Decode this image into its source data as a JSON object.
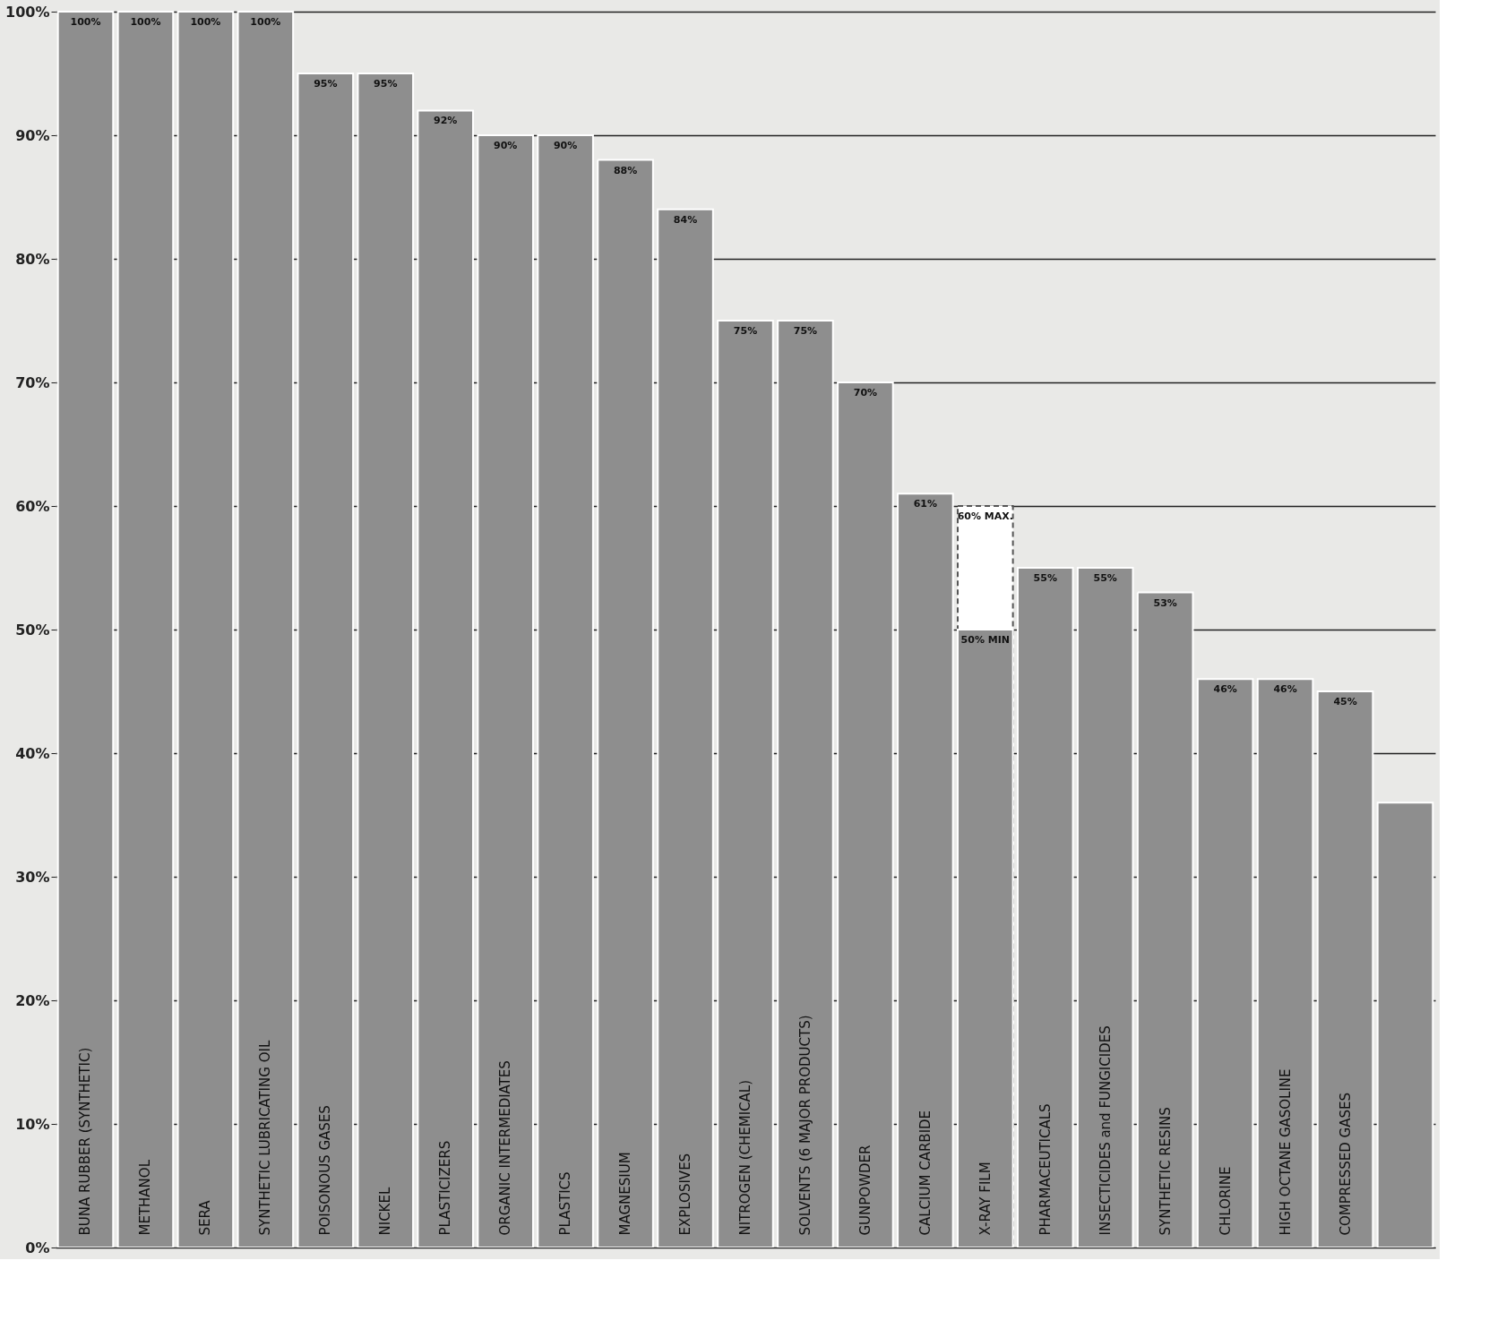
{
  "chart_data": {
    "type": "bar",
    "categories": [
      "BUNA RUBBER (SYNTHETIC)",
      "METHANOL",
      "SERA",
      "SYNTHETIC LUBRICATING OIL",
      "POISONOUS GASES",
      "NICKEL",
      "PLASTICIZERS",
      "ORGANIC INTERMEDIATES",
      "PLASTICS",
      "MAGNESIUM",
      "EXPLOSIVES",
      "NITROGEN (CHEMICAL)",
      "SOLVENTS (6 MAJOR PRODUCTS)",
      "GUNPOWDER",
      "CALCIUM CARBIDE",
      "X-RAY FILM",
      "PHARMACEUTICALS",
      "INSECTICIDES and FUNGICIDES",
      "SYNTHETIC RESINS",
      "CHLORINE",
      "HIGH OCTANE GASOLINE",
      "COMPRESSED GASES",
      null
    ],
    "series": [
      {
        "color": "#8e8e8e",
        "values": [
          100,
          100,
          100,
          100,
          95,
          95,
          92,
          90,
          90,
          88,
          84,
          75,
          75,
          70,
          61,
          50,
          55,
          55,
          53,
          46,
          46,
          45,
          36
        ],
        "value_labels": [
          "100%",
          "100%",
          "100%",
          "100%",
          "95%",
          "95%",
          "92%",
          "90%",
          "90%",
          "88%",
          "84%",
          "75%",
          "75%",
          "70%",
          "61%",
          "50% MIN",
          "55%",
          "55%",
          "53%",
          "46%",
          "46%",
          "45%",
          null
        ]
      },
      {
        "color": "#ffffff",
        "line_style": "dashed",
        "values": [
          null,
          null,
          null,
          null,
          null,
          null,
          null,
          null,
          null,
          null,
          null,
          null,
          null,
          null,
          null,
          60,
          null,
          null,
          null,
          null,
          null,
          null,
          null
        ],
        "value_labels": [
          null,
          null,
          null,
          null,
          null,
          null,
          null,
          null,
          null,
          null,
          null,
          null,
          null,
          null,
          null,
          "60% MAX.",
          null,
          null,
          null,
          null,
          null,
          null,
          null
        ]
      }
    ],
    "ylim": [
      0,
      100
    ],
    "yticks": [
      {
        "value": 0,
        "label": "0%"
      },
      {
        "value": 10,
        "label": "10%"
      },
      {
        "value": 20,
        "label": "20%"
      },
      {
        "value": 30,
        "label": "30%"
      },
      {
        "value": 40,
        "label": "40%"
      },
      {
        "value": 50,
        "label": "50%"
      },
      {
        "value": 60,
        "label": "60%"
      },
      {
        "value": 70,
        "label": "70%"
      },
      {
        "value": 80,
        "label": "80%"
      },
      {
        "value": 90,
        "label": "90%"
      },
      {
        "value": 100,
        "label": "100%"
      }
    ],
    "grid": "y"
  }
}
